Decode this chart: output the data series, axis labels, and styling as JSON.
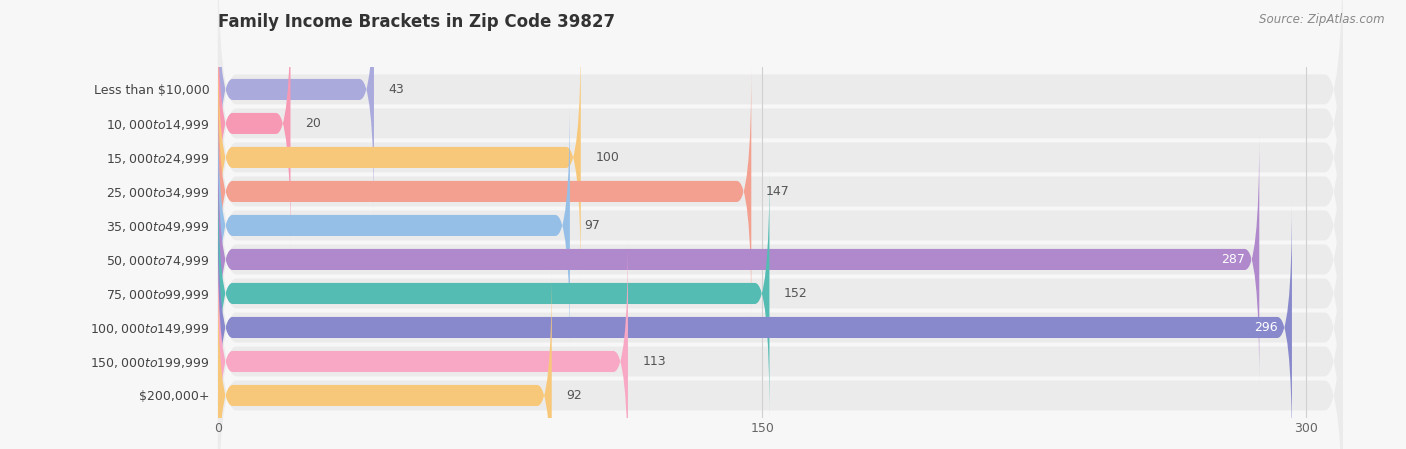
{
  "title": "Family Income Brackets in Zip Code 39827",
  "source": "Source: ZipAtlas.com",
  "categories": [
    "Less than $10,000",
    "$10,000 to $14,999",
    "$15,000 to $24,999",
    "$25,000 to $34,999",
    "$35,000 to $49,999",
    "$50,000 to $74,999",
    "$75,000 to $99,999",
    "$100,000 to $149,999",
    "$150,000 to $199,999",
    "$200,000+"
  ],
  "values": [
    43,
    20,
    100,
    147,
    97,
    287,
    152,
    296,
    113,
    92
  ],
  "bar_colors": [
    "#aaaadd",
    "#f799b4",
    "#f8c87a",
    "#f4a090",
    "#96bfe8",
    "#b088cc",
    "#55bcb4",
    "#8888cc",
    "#f8a8c4",
    "#f8c87a"
  ],
  "xlim": [
    0,
    310
  ],
  "xticks": [
    0,
    150,
    300
  ],
  "background_color": "#f7f7f7",
  "row_bg_color": "#ebebeb",
  "title_fontsize": 12,
  "label_fontsize": 9,
  "value_fontsize": 9,
  "bar_height": 0.62,
  "inside_label_threshold": 260,
  "inside_label_color": "#ffffff",
  "outside_label_color": "#555555",
  "title_color": "#333333",
  "source_color": "#888888",
  "label_color": "#444444",
  "grid_color": "#d0d0d0"
}
